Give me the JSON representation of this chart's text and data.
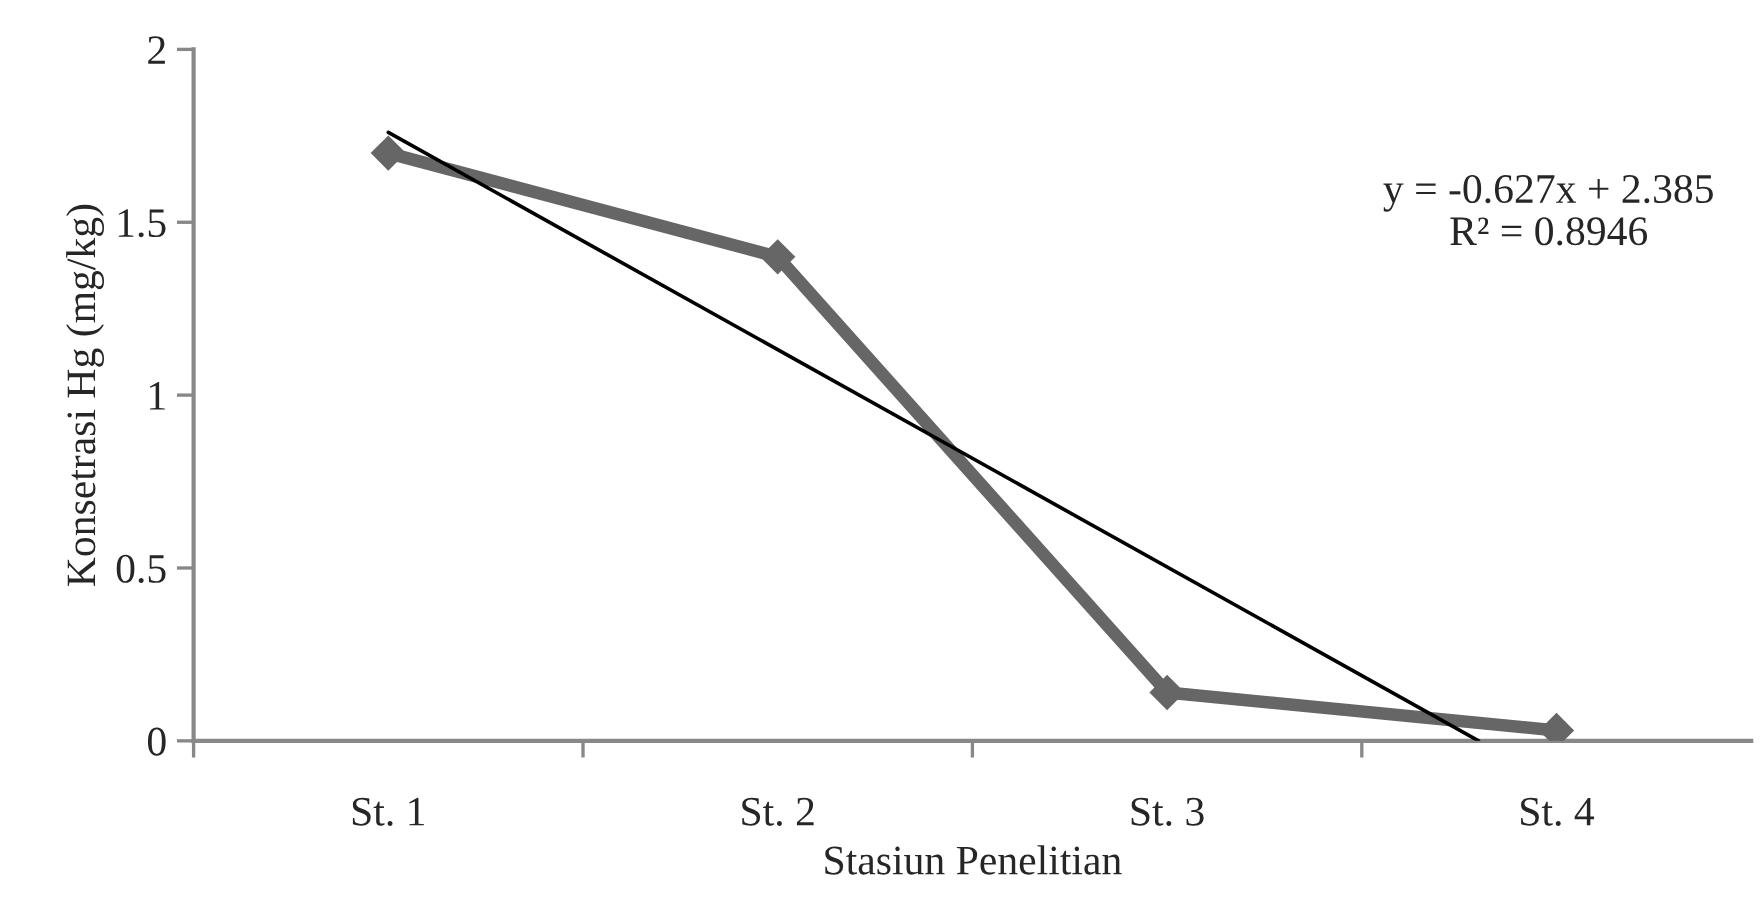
{
  "chart_data": {
    "type": "line",
    "xlabel": "Stasiun Penelitian",
    "ylabel": "Konsetrasi Hg (mg/kg)",
    "x": [
      1,
      2,
      3,
      4
    ],
    "series": [
      {
        "color": "#666666",
        "values": [
          1.7,
          1.4,
          0.14,
          0.03
        ],
        "marker": "diamond"
      },
      {
        "color": "#000000",
        "x": [
          1,
          3.8
        ],
        "values": [
          1.76,
          0
        ],
        "marker": "none"
      }
    ],
    "xlim": [
      0.5,
      4.5
    ],
    "xticks": [
      {
        "value": 0.5,
        "label": null
      },
      {
        "value": 1,
        "label": "St. 1"
      },
      {
        "value": 1.5,
        "label": null
      },
      {
        "value": 2,
        "label": "St. 2"
      },
      {
        "value": 2.5,
        "label": null
      },
      {
        "value": 3,
        "label": "St. 3"
      },
      {
        "value": 3.5,
        "label": null
      },
      {
        "value": 4,
        "label": "St. 4"
      }
    ],
    "ylim": [
      0,
      2
    ],
    "yticks": [
      0,
      0.5,
      1,
      1.5,
      2
    ],
    "grid": false,
    "legend": false,
    "annotations": [
      "y = -0.627x + 2.385\nR² = 0.8946"
    ]
  }
}
